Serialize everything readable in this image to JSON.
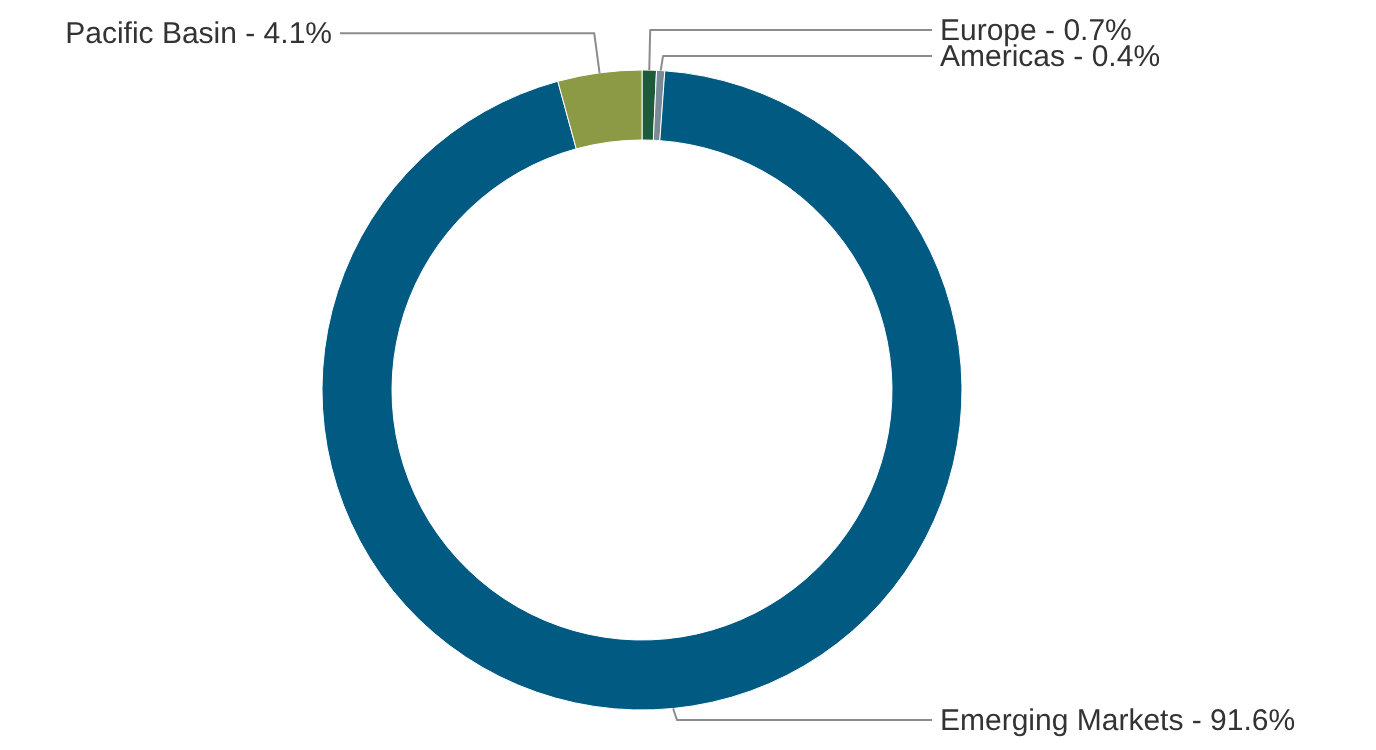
{
  "chart_data": {
    "type": "donut",
    "categories": [
      "Europe",
      "Americas",
      "Emerging Markets",
      "Pacific Basin"
    ],
    "values": [
      0.7,
      0.4,
      91.6,
      4.1
    ],
    "value_labels": [
      "0.7%",
      "0.4%",
      "91.6%",
      "4.1%"
    ],
    "colors": [
      "#1d5b3a",
      "#7a8a96",
      "#005a82",
      "#8c9a45"
    ]
  }
}
